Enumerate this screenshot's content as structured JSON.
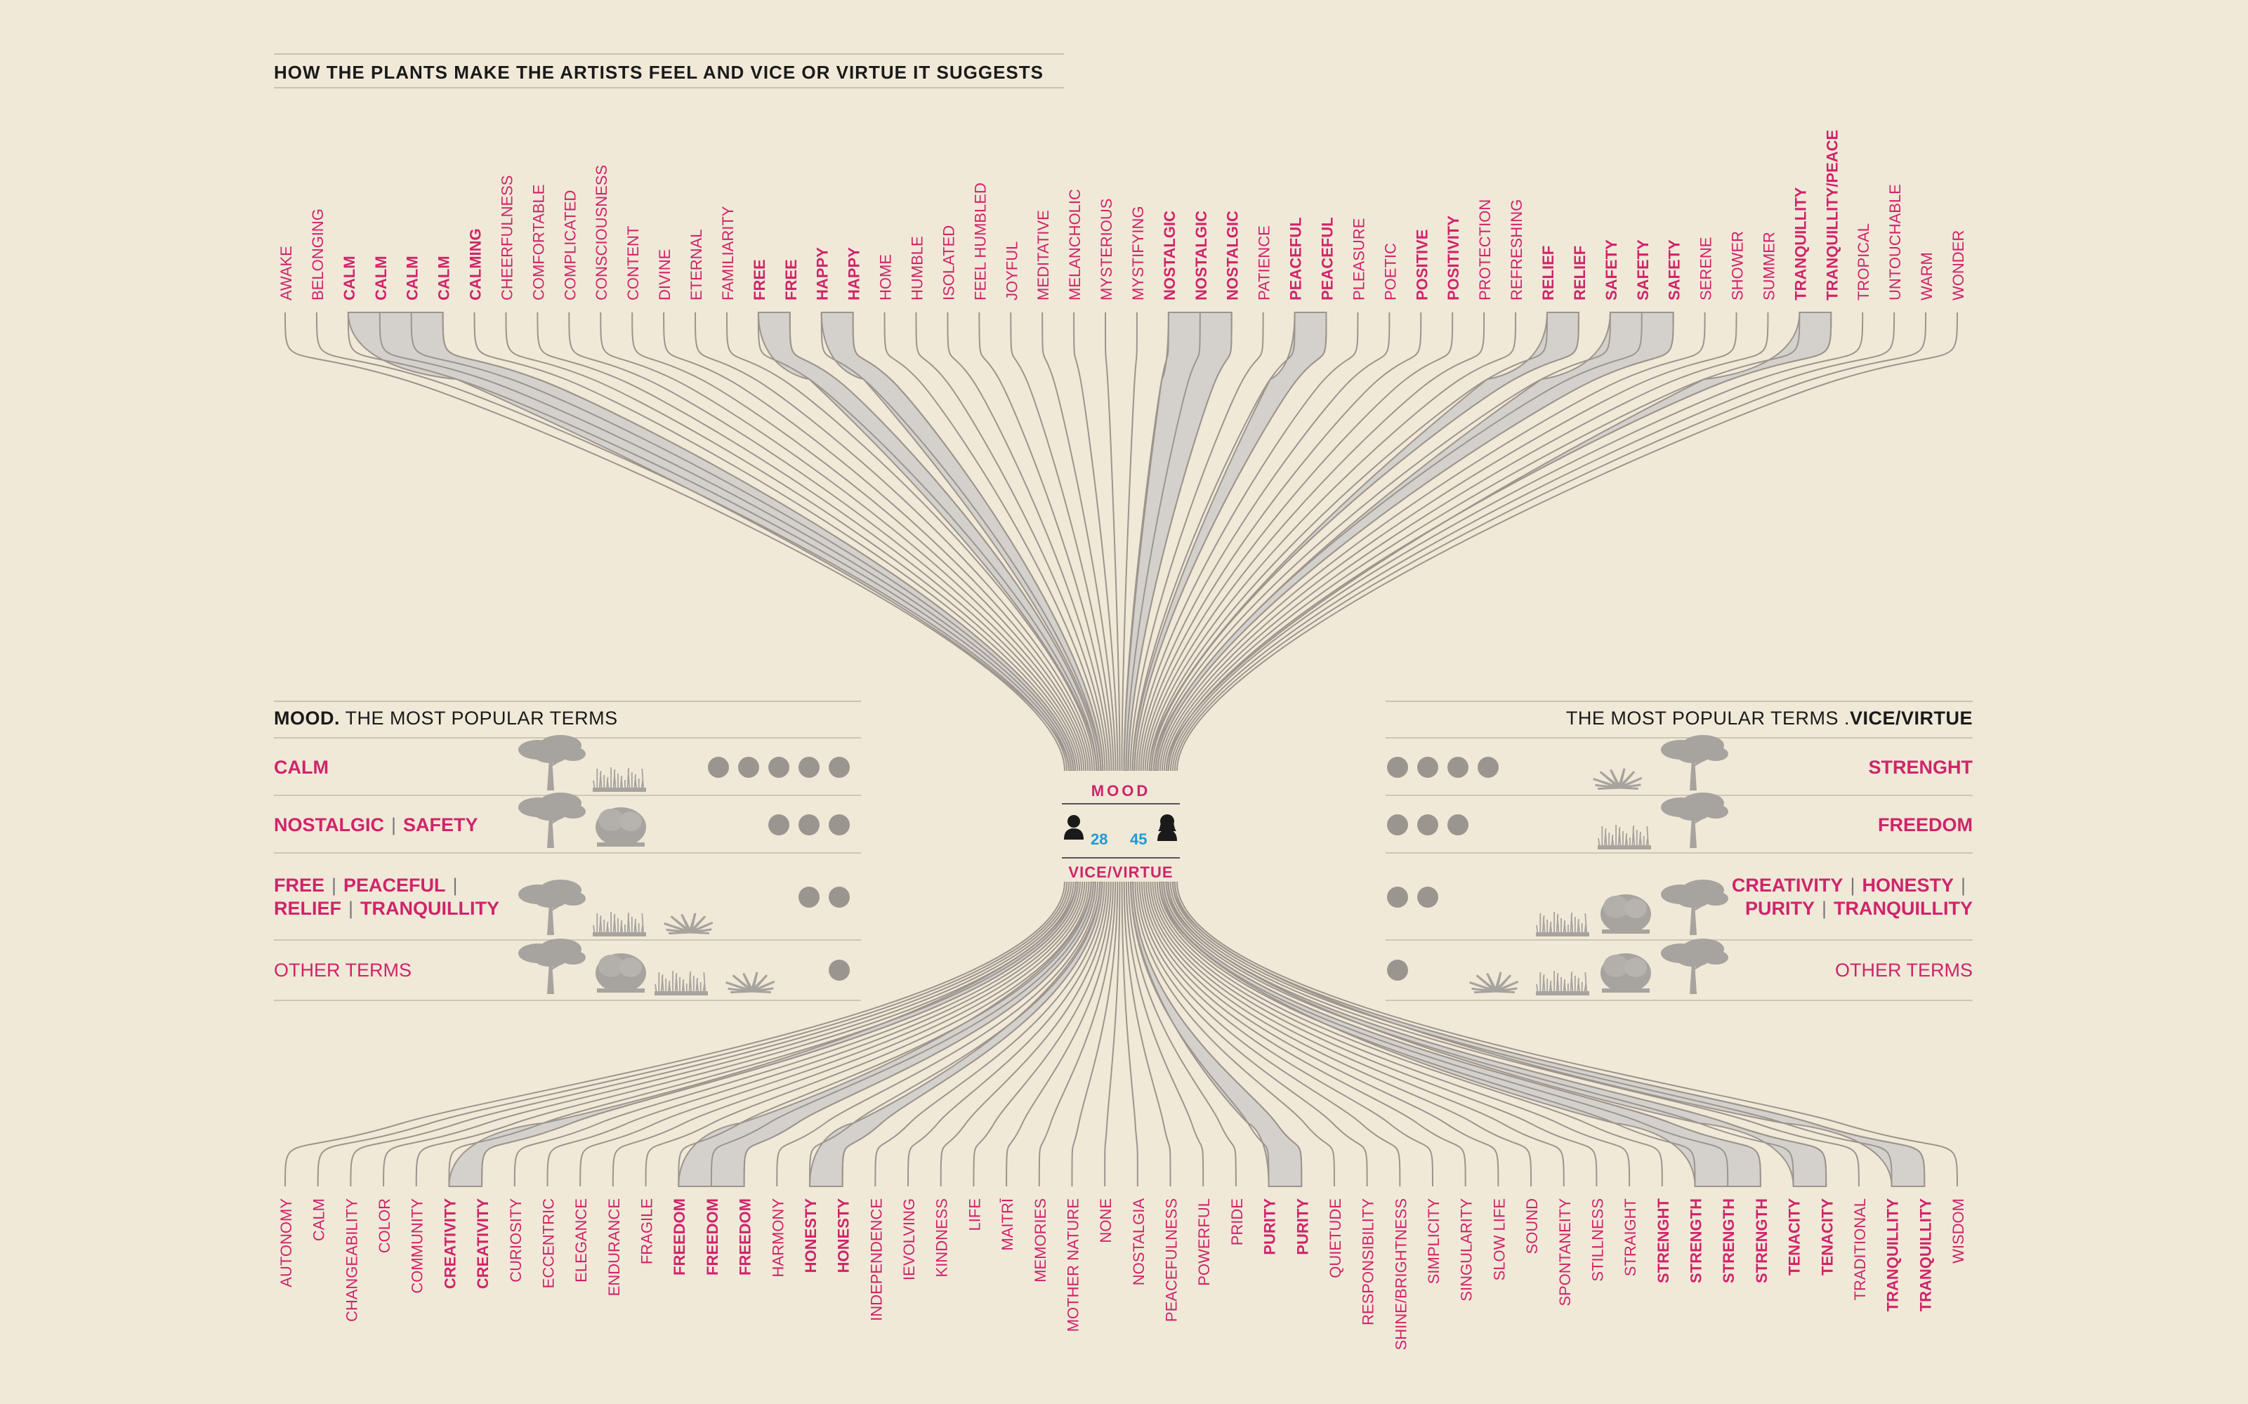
{
  "title": "HOW THE PLANTS MAKE THE ARTISTS FEEL AND VICE OR VIRTUE IT SUGGESTS",
  "colors": {
    "accent": "#d0246b",
    "line": "#9d958d",
    "band": "#d4d1cd",
    "count": "#1e9ad6",
    "background": "#f0e9d8",
    "dot": "#9b9590",
    "plant": "#a7a39e"
  },
  "center": {
    "mood_label": "MOOD",
    "vice_label": "VICE/VIRTUE",
    "male_count": "28",
    "female_count": "45"
  },
  "mood_terms": [
    {
      "t": "AWAKE",
      "b": false
    },
    {
      "t": "BELONGING",
      "b": false
    },
    {
      "t": "CALM",
      "b": true
    },
    {
      "t": "CALM",
      "b": true
    },
    {
      "t": "CALM",
      "b": true
    },
    {
      "t": "CALM",
      "b": true
    },
    {
      "t": "CALMING",
      "b": true
    },
    {
      "t": "CHEERFULNESS",
      "b": false
    },
    {
      "t": "COMFORTABLE",
      "b": false
    },
    {
      "t": "COMPLICATED",
      "b": false
    },
    {
      "t": "CONSCIOUSNESS",
      "b": false
    },
    {
      "t": "CONTENT",
      "b": false
    },
    {
      "t": "DIVINE",
      "b": false
    },
    {
      "t": "ETERNAL",
      "b": false
    },
    {
      "t": "FAMILIARITY",
      "b": false
    },
    {
      "t": "FREE",
      "b": true
    },
    {
      "t": "FREE",
      "b": true
    },
    {
      "t": "HAPPY",
      "b": true
    },
    {
      "t": "HAPPY",
      "b": true
    },
    {
      "t": "HOME",
      "b": false
    },
    {
      "t": "HUMBLE",
      "b": false
    },
    {
      "t": "ISOLATED",
      "b": false
    },
    {
      "t": "FEEL HUMBLED",
      "b": false
    },
    {
      "t": "JOYFUL",
      "b": false
    },
    {
      "t": "MEDITATIVE",
      "b": false
    },
    {
      "t": "MELANCHOLIC",
      "b": false
    },
    {
      "t": "MYSTERIOUS",
      "b": false
    },
    {
      "t": "MYSTIFYING",
      "b": false
    },
    {
      "t": "NOSTALGIC",
      "b": true
    },
    {
      "t": "NOSTALGIC",
      "b": true
    },
    {
      "t": "NOSTALGIC",
      "b": true
    },
    {
      "t": "PATIENCE",
      "b": false
    },
    {
      "t": "PEACEFUL",
      "b": true
    },
    {
      "t": "PEACEFUL",
      "b": true
    },
    {
      "t": "PLEASURE",
      "b": false
    },
    {
      "t": "POETIC",
      "b": false
    },
    {
      "t": "POSITIVE",
      "b": true
    },
    {
      "t": "POSITIVITY",
      "b": true
    },
    {
      "t": "PROTECTION",
      "b": false
    },
    {
      "t": "REFRESHING",
      "b": false
    },
    {
      "t": "RELIEF",
      "b": true
    },
    {
      "t": "RELIEF",
      "b": true
    },
    {
      "t": "SAFETY",
      "b": true
    },
    {
      "t": "SAFETY",
      "b": true
    },
    {
      "t": "SAFETY",
      "b": true
    },
    {
      "t": "SERENE",
      "b": false
    },
    {
      "t": "SHOWER",
      "b": false
    },
    {
      "t": "SUMMER",
      "b": false
    },
    {
      "t": "TRANQUILLITY",
      "b": true
    },
    {
      "t": "TRANQUILLITY/PEACE",
      "b": true
    },
    {
      "t": "TROPICAL",
      "b": false
    },
    {
      "t": "UNTOUCHABLE",
      "b": false
    },
    {
      "t": "WARM",
      "b": false
    },
    {
      "t": "WONDER",
      "b": false
    }
  ],
  "vice_terms": [
    {
      "t": "AUTONOMY",
      "b": false
    },
    {
      "t": "CALM",
      "b": false
    },
    {
      "t": "CHANGEABILITY",
      "b": false
    },
    {
      "t": "COLOR",
      "b": false
    },
    {
      "t": "COMMUNITY",
      "b": false
    },
    {
      "t": "CREATIVITY",
      "b": true
    },
    {
      "t": "CREATIVITY",
      "b": true
    },
    {
      "t": "CURIOSITY",
      "b": false
    },
    {
      "t": "ECCENTRIC",
      "b": false
    },
    {
      "t": "ELEGANCE",
      "b": false
    },
    {
      "t": "ENDURANCE",
      "b": false
    },
    {
      "t": "FRAGILE",
      "b": false
    },
    {
      "t": "FREEDOM",
      "b": true
    },
    {
      "t": "FREEDOM",
      "b": true
    },
    {
      "t": "FREEDOM",
      "b": true
    },
    {
      "t": "HARMONY",
      "b": false
    },
    {
      "t": "HONESTY",
      "b": true
    },
    {
      "t": "HONESTY",
      "b": true
    },
    {
      "t": "INDEPENDENCE",
      "b": false
    },
    {
      "t": "IEVOLVING",
      "b": false
    },
    {
      "t": "KINDNESS",
      "b": false
    },
    {
      "t": "LIFE",
      "b": false
    },
    {
      "t": "MAITRĪ",
      "b": false
    },
    {
      "t": "MEMORIES",
      "b": false
    },
    {
      "t": "MOTHER NATURE",
      "b": false
    },
    {
      "t": "NONE",
      "b": false
    },
    {
      "t": "NOSTALGIA",
      "b": false
    },
    {
      "t": "PEACEFULNESS",
      "b": false
    },
    {
      "t": "POWERFUL",
      "b": false
    },
    {
      "t": "PRIDE",
      "b": false
    },
    {
      "t": "PURITY",
      "b": true
    },
    {
      "t": "PURITY",
      "b": true
    },
    {
      "t": "QUIETUDE",
      "b": false
    },
    {
      "t": "RESPONSIBILITY",
      "b": false
    },
    {
      "t": "SHINE/BRIGHTNESS",
      "b": false
    },
    {
      "t": "SIMPLICITY",
      "b": false
    },
    {
      "t": "SINGULARITY",
      "b": false
    },
    {
      "t": "SLOW LIFE",
      "b": false
    },
    {
      "t": "SOUND",
      "b": false
    },
    {
      "t": "SPONTANEITY",
      "b": false
    },
    {
      "t": "STILLNESS",
      "b": false
    },
    {
      "t": "STRAIGHT",
      "b": false
    },
    {
      "t": "STRENGHT",
      "b": true
    },
    {
      "t": "STRENGTH",
      "b": true
    },
    {
      "t": "STRENGTH",
      "b": true
    },
    {
      "t": "STRENGTH",
      "b": true
    },
    {
      "t": "TENACITY",
      "b": true
    },
    {
      "t": "TENACITY",
      "b": true
    },
    {
      "t": "TRADITIONAL",
      "b": false
    },
    {
      "t": "TRANQUILLITY",
      "b": true
    },
    {
      "t": "TRANQUILLITY",
      "b": true
    },
    {
      "t": "WISDOM",
      "b": false
    }
  ],
  "mood_panel": {
    "head_bold": "MOOD.",
    "head_rest": " THE MOST POPULAR TERMS",
    "rows": [
      {
        "labels": [
          "CALM"
        ],
        "dots": 5,
        "plants": [
          "tree",
          "grass"
        ]
      },
      {
        "labels": [
          "NOSTALGIC",
          "SAFETY"
        ],
        "dots": 3,
        "plants": [
          "tree",
          "bush"
        ]
      },
      {
        "labels": [
          "FREE",
          "PEACEFUL",
          "RELIEF",
          "TRANQUILLITY"
        ],
        "dots": 2,
        "plants": [
          "tree",
          "grass",
          "agave"
        ]
      },
      {
        "labels": [
          "OTHER TERMS"
        ],
        "dots": 1,
        "plants": [
          "tree",
          "bush",
          "grass",
          "agave"
        ],
        "light": true
      }
    ]
  },
  "vice_panel": {
    "head_rest": "THE MOST POPULAR TERMS .",
    "head_bold": "VICE/VIRTUE",
    "rows": [
      {
        "labels": [
          "STRENGHT"
        ],
        "dots": 4,
        "plants": [
          "agave",
          "tree"
        ]
      },
      {
        "labels": [
          "FREEDOM"
        ],
        "dots": 3,
        "plants": [
          "grass",
          "tree"
        ]
      },
      {
        "labels": [
          "CREATIVITY",
          "HONESTY",
          "PURITY",
          "TRANQUILLITY"
        ],
        "dots": 2,
        "plants": [
          "grass",
          "bush",
          "tree"
        ]
      },
      {
        "labels": [
          "OTHER TERMS"
        ],
        "dots": 1,
        "plants": [
          "agave",
          "grass",
          "bush",
          "tree"
        ],
        "light": true
      }
    ]
  }
}
